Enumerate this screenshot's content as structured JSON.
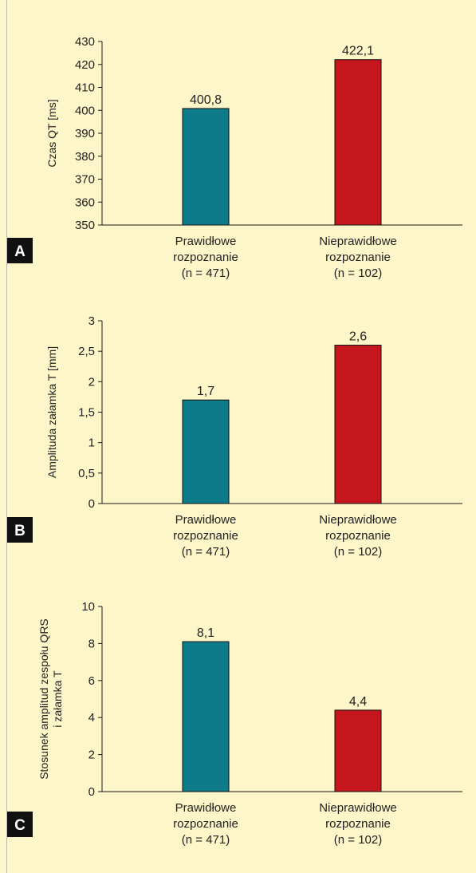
{
  "colors": {
    "background": "#fdf6c9",
    "correct": "#0e7b8a",
    "incorrect": "#c4161c",
    "axis": "#1a1a1a",
    "badge": "#111111"
  },
  "chart_data": [
    {
      "panel": "A",
      "type": "bar",
      "ylabel": "Czas QT [ms]",
      "ylim": [
        350,
        430
      ],
      "yticks": [
        "350",
        "360",
        "370",
        "380",
        "390",
        "400",
        "410",
        "420",
        "430"
      ],
      "categories": [
        [
          "Prawidłowe",
          "rozpoznanie",
          "(n = 471)"
        ],
        [
          "Nieprawidłowe",
          "rozpoznanie",
          "(n = 102)"
        ]
      ],
      "values": [
        400.8,
        422.1
      ],
      "value_labels": [
        "400,8",
        "422,1"
      ]
    },
    {
      "panel": "B",
      "type": "bar",
      "ylabel": "Amplituda załamka T [mm]",
      "ylim": [
        0,
        3
      ],
      "yticks": [
        "0",
        "0,5",
        "1",
        "1,5",
        "2",
        "2,5",
        "3"
      ],
      "categories": [
        [
          "Prawidłowe",
          "rozpoznanie",
          "(n = 471)"
        ],
        [
          "Nieprawidłowe",
          "rozpoznanie",
          "(n = 102)"
        ]
      ],
      "values": [
        1.7,
        2.6
      ],
      "value_labels": [
        "1,7",
        "2,6"
      ]
    },
    {
      "panel": "C",
      "type": "bar",
      "ylabel": [
        "Stosunek amplitud zespołu QRS",
        "i załamka T"
      ],
      "ylim": [
        0,
        10
      ],
      "yticks": [
        "0",
        "2",
        "4",
        "6",
        "8",
        "10"
      ],
      "categories": [
        [
          "Prawidłowe",
          "rozpoznanie",
          "(n = 471)"
        ],
        [
          "Nieprawidłowe",
          "rozpoznanie",
          "(n = 102)"
        ]
      ],
      "values": [
        8.1,
        4.4
      ],
      "value_labels": [
        "8,1",
        "4,4"
      ]
    }
  ]
}
